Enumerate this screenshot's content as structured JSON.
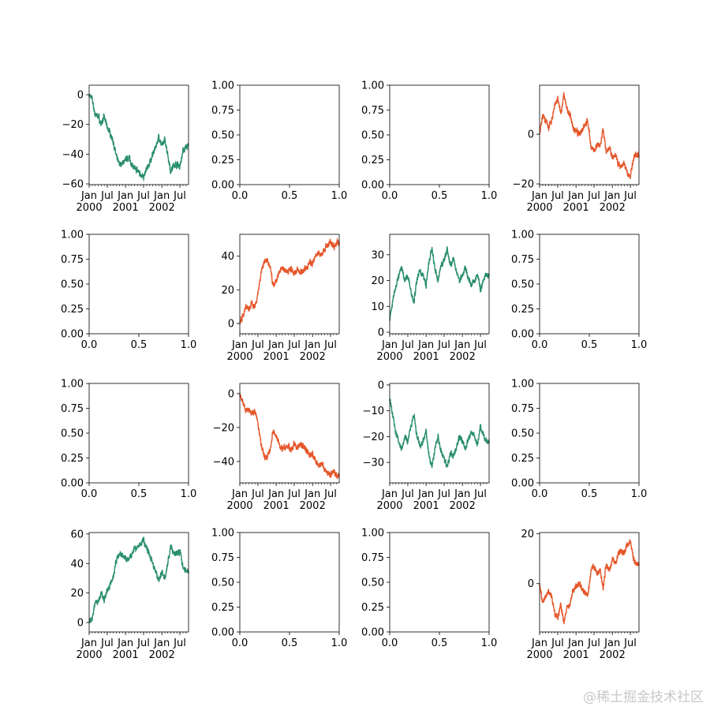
{
  "chart_data": {
    "type": "line",
    "layout": "4x4 grid of subplots",
    "colors": {
      "green": "#2a8f6b",
      "orange": "#e5572b"
    },
    "date_axis": {
      "xlim": [
        "2000-01-01",
        "2002-09-26"
      ],
      "major_ticks": [
        "2000-01-01",
        "2000-07-01",
        "2001-01-01",
        "2001-07-01",
        "2002-01-01",
        "2002-07-01"
      ],
      "major_tick_labels": [
        [
          "Jan",
          "2000"
        ],
        [
          "Jul",
          ""
        ],
        [
          "Jan",
          "2001"
        ],
        [
          "Jul",
          ""
        ],
        [
          "Jan",
          "2002"
        ],
        [
          "Jul",
          ""
        ]
      ],
      "minor_ticks": "monthly"
    },
    "empty_axis": {
      "ylim": [
        0,
        1
      ],
      "xlim": [
        0,
        1
      ],
      "y_ticks": [
        "0.00",
        "0.25",
        "0.50",
        "0.75",
        "1.00"
      ],
      "x_ticks": [
        "0.0",
        "0.5",
        "1.0"
      ]
    },
    "months": [
      "2000-01",
      "2000-02",
      "2000-03",
      "2000-04",
      "2000-05",
      "2000-06",
      "2000-07",
      "2000-08",
      "2000-09",
      "2000-10",
      "2000-11",
      "2000-12",
      "2001-01",
      "2001-02",
      "2001-03",
      "2001-04",
      "2001-05",
      "2001-06",
      "2001-07",
      "2001-08",
      "2001-09",
      "2001-10",
      "2001-11",
      "2001-12",
      "2002-01",
      "2002-02",
      "2002-03",
      "2002-04",
      "2002-05",
      "2002-06",
      "2002-07",
      "2002-08",
      "2002-09"
    ],
    "charts": [
      {
        "kind": "line",
        "color": "green",
        "ylim": [
          -60.5,
          6.4
        ],
        "y_ticks": [
          0,
          -20,
          -40,
          -60
        ],
        "y_tick_labels": [
          "0",
          "−20",
          "−40",
          "−60"
        ],
        "values": [
          0,
          -3,
          -14,
          -14,
          -20,
          -15,
          -22,
          -26,
          -32,
          -42,
          -47,
          -46,
          -44,
          -42,
          -46,
          -50,
          -51,
          -53,
          -56,
          -50,
          -46,
          -40,
          -35,
          -28,
          -35,
          -30,
          -40,
          -52,
          -47,
          -47,
          -48,
          -38,
          -35
        ]
      },
      {
        "kind": "empty"
      },
      {
        "kind": "empty"
      },
      {
        "kind": "line",
        "color": "orange",
        "ylim": [
          -20.3,
          19.7
        ],
        "y_ticks": [
          0,
          -20
        ],
        "y_tick_labels": [
          "0",
          "−20"
        ],
        "values": [
          0,
          8,
          5,
          3,
          5,
          12,
          14,
          8,
          16,
          10,
          8,
          3,
          1,
          0,
          2,
          4,
          5,
          -5,
          -7,
          -4,
          -5,
          2,
          -8,
          -5,
          -10,
          -8,
          -12,
          -13,
          -12,
          -16,
          -17,
          -10,
          -8
        ]
      },
      {
        "kind": "empty"
      },
      {
        "kind": "line",
        "color": "orange",
        "ylim": [
          -6.1,
          53
        ],
        "y_ticks": [
          0,
          20,
          40
        ],
        "y_tick_labels": [
          "0",
          "20",
          "40"
        ],
        "values": [
          0,
          5,
          10,
          8,
          12,
          10,
          18,
          30,
          37,
          38,
          33,
          22,
          25,
          30,
          33,
          32,
          31,
          33,
          30,
          32,
          30,
          31,
          33,
          36,
          36,
          40,
          42,
          41,
          44,
          47,
          48,
          46,
          48
        ]
      },
      {
        "kind": "line",
        "color": "green",
        "ylim": [
          -0.6,
          37.9
        ],
        "y_ticks": [
          0,
          10,
          20,
          30
        ],
        "y_tick_labels": [
          "0",
          "10",
          "20",
          "30"
        ],
        "values": [
          5,
          12,
          18,
          22,
          25,
          20,
          22,
          16,
          12,
          20,
          24,
          22,
          18,
          28,
          32,
          24,
          20,
          26,
          28,
          32,
          26,
          28,
          24,
          20,
          22,
          25,
          21,
          18,
          20,
          23,
          16,
          20,
          22
        ]
      },
      {
        "kind": "empty"
      },
      {
        "kind": "empty"
      },
      {
        "kind": "line",
        "color": "orange",
        "ylim": [
          -52.6,
          6
        ],
        "y_ticks": [
          0,
          -20,
          -40
        ],
        "y_tick_labels": [
          "0",
          "−20",
          "−40"
        ],
        "values": [
          0,
          -5,
          -10,
          -8,
          -12,
          -10,
          -18,
          -30,
          -37,
          -38,
          -33,
          -22,
          -25,
          -30,
          -33,
          -32,
          -31,
          -33,
          -30,
          -32,
          -30,
          -31,
          -33,
          -36,
          -36,
          -40,
          -42,
          -41,
          -44,
          -47,
          -48,
          -46,
          -48
        ]
      },
      {
        "kind": "line",
        "color": "green",
        "ylim": [
          -37.9,
          0.6
        ],
        "y_ticks": [
          0,
          -10,
          -20,
          -30
        ],
        "y_tick_labels": [
          "0",
          "−10",
          "−20",
          "−30"
        ],
        "values": [
          -5,
          -12,
          -18,
          -22,
          -25,
          -20,
          -22,
          -16,
          -12,
          -20,
          -24,
          -22,
          -18,
          -28,
          -32,
          -24,
          -20,
          -26,
          -28,
          -32,
          -26,
          -28,
          -24,
          -20,
          -22,
          -25,
          -21,
          -18,
          -20,
          -23,
          -16,
          -20,
          -22
        ]
      },
      {
        "kind": "empty"
      },
      {
        "kind": "line",
        "color": "green",
        "ylim": [
          -6.4,
          61
        ],
        "y_ticks": [
          0,
          20,
          40,
          60
        ],
        "y_tick_labels": [
          "0",
          "20",
          "40",
          "60"
        ],
        "values": [
          0,
          3,
          14,
          14,
          20,
          15,
          22,
          26,
          32,
          42,
          47,
          46,
          44,
          42,
          46,
          50,
          51,
          53,
          56,
          50,
          46,
          40,
          35,
          28,
          35,
          30,
          40,
          52,
          47,
          47,
          48,
          38,
          35
        ]
      },
      {
        "kind": "empty"
      },
      {
        "kind": "empty"
      },
      {
        "kind": "line",
        "color": "orange",
        "ylim": [
          -19.4,
          20.5
        ],
        "y_ticks": [
          0,
          20
        ],
        "y_tick_labels": [
          "0",
          "20"
        ],
        "values": [
          0,
          -8,
          -5,
          -3,
          -5,
          -12,
          -14,
          -8,
          -16,
          -10,
          -8,
          -3,
          -1,
          0,
          -2,
          -4,
          -5,
          5,
          7,
          4,
          5,
          -2,
          8,
          5,
          10,
          8,
          12,
          13,
          12,
          16,
          17,
          10,
          8
        ]
      }
    ]
  },
  "watermark": "@稀土掘金技术社区"
}
